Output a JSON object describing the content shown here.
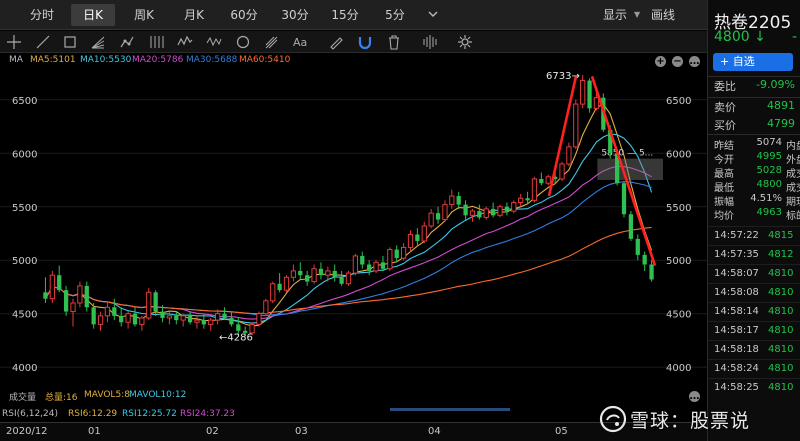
{
  "periods": [
    "分时",
    "日K",
    "周K",
    "月K",
    "60分",
    "30分",
    "15分",
    "5分"
  ],
  "active_period": 1,
  "header": {
    "display_label": "显示",
    "draw_label": "画线"
  },
  "tools": [
    "crosshair-icon",
    "line-icon",
    "rect-icon",
    "fib-fan-icon",
    "pattern-icon",
    "channel-icon",
    "wave-icon",
    "circle-icon",
    "pitchfork-icon",
    "text-icon",
    "pen-icon",
    "magnet-icon",
    "trash-icon",
    "align-icon",
    "settings-icon"
  ],
  "ma_legend": {
    "title": "MA",
    "items": [
      {
        "label": "MA5:5101",
        "color": "#e0b040"
      },
      {
        "label": "MA10:5530",
        "color": "#3ec8e8"
      },
      {
        "label": "MA20:5786",
        "color": "#d24ad2"
      },
      {
        "label": "MA30:5688",
        "color": "#2f7fe0"
      },
      {
        "label": "MA60:5410",
        "color": "#ff6a2a"
      }
    ],
    "plus_symbol": "+",
    "minus_symbol": "−"
  },
  "chart_data": {
    "type": "candlestick",
    "y_ticks": [
      6500,
      6000,
      5500,
      5000,
      4500,
      4000
    ],
    "ylim": [
      3880,
      6760
    ],
    "x_labels": [
      "2020/12",
      "01",
      "02",
      "03",
      "04",
      "05"
    ],
    "high_marker": "6733→",
    "low_marker": "←4286",
    "price_box_label": "5850 — 5...",
    "bullish_color": "#e03c3c",
    "bearish_color": "#2ec050",
    "ohlc": [
      [
        4700,
        4840,
        4600,
        4640
      ],
      [
        4640,
        4900,
        4600,
        4860
      ],
      [
        4860,
        4950,
        4700,
        4720
      ],
      [
        4720,
        4760,
        4480,
        4520
      ],
      [
        4520,
        4640,
        4380,
        4600
      ],
      [
        4600,
        4800,
        4560,
        4760
      ],
      [
        4760,
        4800,
        4520,
        4560
      ],
      [
        4560,
        4600,
        4360,
        4400
      ],
      [
        4400,
        4520,
        4340,
        4480
      ],
      [
        4480,
        4600,
        4420,
        4560
      ],
      [
        4560,
        4640,
        4440,
        4480
      ],
      [
        4480,
        4560,
        4380,
        4420
      ],
      [
        4420,
        4520,
        4360,
        4500
      ],
      [
        4500,
        4560,
        4380,
        4400
      ],
      [
        4400,
        4480,
        4340,
        4460
      ],
      [
        4460,
        4740,
        4440,
        4700
      ],
      [
        4700,
        4720,
        4480,
        4520
      ],
      [
        4520,
        4580,
        4420,
        4460
      ],
      [
        4460,
        4520,
        4400,
        4480
      ],
      [
        4480,
        4520,
        4400,
        4440
      ],
      [
        4440,
        4500,
        4380,
        4480
      ],
      [
        4480,
        4520,
        4400,
        4420
      ],
      [
        4420,
        4480,
        4360,
        4440
      ],
      [
        4440,
        4500,
        4360,
        4400
      ],
      [
        4400,
        4460,
        4340,
        4440
      ],
      [
        4440,
        4540,
        4400,
        4500
      ],
      [
        4500,
        4560,
        4440,
        4460
      ],
      [
        4460,
        4520,
        4380,
        4400
      ],
      [
        4400,
        4460,
        4300,
        4340
      ],
      [
        4340,
        4380,
        4286,
        4320
      ],
      [
        4320,
        4420,
        4300,
        4400
      ],
      [
        4400,
        4520,
        4380,
        4500
      ],
      [
        4500,
        4640,
        4480,
        4620
      ],
      [
        4620,
        4800,
        4600,
        4780
      ],
      [
        4780,
        4880,
        4700,
        4720
      ],
      [
        4720,
        4860,
        4700,
        4840
      ],
      [
        4840,
        4960,
        4800,
        4900
      ],
      [
        4900,
        4980,
        4820,
        4860
      ],
      [
        4860,
        4900,
        4760,
        4800
      ],
      [
        4800,
        4960,
        4780,
        4920
      ],
      [
        4920,
        4980,
        4820,
        4860
      ],
      [
        4860,
        4940,
        4800,
        4900
      ],
      [
        4900,
        4960,
        4800,
        4840
      ],
      [
        4840,
        4900,
        4760,
        4780
      ],
      [
        4780,
        4900,
        4760,
        4880
      ],
      [
        4880,
        5060,
        4860,
        5040
      ],
      [
        5040,
        5080,
        4920,
        4960
      ],
      [
        4960,
        5000,
        4860,
        4900
      ],
      [
        4900,
        5000,
        4880,
        4980
      ],
      [
        4980,
        5040,
        4900,
        4920
      ],
      [
        4920,
        5120,
        4900,
        5100
      ],
      [
        5100,
        5140,
        4980,
        5020
      ],
      [
        5020,
        5160,
        5000,
        5120
      ],
      [
        5120,
        5280,
        5080,
        5240
      ],
      [
        5240,
        5300,
        5140,
        5180
      ],
      [
        5180,
        5360,
        5160,
        5320
      ],
      [
        5320,
        5480,
        5300,
        5440
      ],
      [
        5440,
        5500,
        5340,
        5380
      ],
      [
        5380,
        5560,
        5360,
        5520
      ],
      [
        5520,
        5660,
        5480,
        5600
      ],
      [
        5600,
        5640,
        5480,
        5520
      ],
      [
        5520,
        5560,
        5380,
        5420
      ],
      [
        5420,
        5480,
        5360,
        5460
      ],
      [
        5460,
        5520,
        5380,
        5400
      ],
      [
        5400,
        5500,
        5380,
        5480
      ],
      [
        5480,
        5540,
        5400,
        5420
      ],
      [
        5420,
        5520,
        5400,
        5500
      ],
      [
        5500,
        5540,
        5420,
        5460
      ],
      [
        5460,
        5560,
        5440,
        5540
      ],
      [
        5540,
        5620,
        5500,
        5580
      ],
      [
        5580,
        5640,
        5520,
        5560
      ],
      [
        5560,
        5780,
        5540,
        5760
      ],
      [
        5760,
        5820,
        5700,
        5720
      ],
      [
        5720,
        5800,
        5700,
        5780
      ],
      [
        5780,
        5820,
        5720,
        5760
      ],
      [
        5760,
        5920,
        5740,
        5900
      ],
      [
        5900,
        6100,
        5880,
        6060
      ],
      [
        6060,
        6500,
        6040,
        6460
      ],
      [
        6460,
        6733,
        6420,
        6680
      ],
      [
        6680,
        6700,
        6380,
        6420
      ],
      [
        6420,
        6560,
        6400,
        6520
      ],
      [
        6520,
        6560,
        6200,
        6220
      ],
      [
        6220,
        6260,
        5950,
        6000
      ],
      [
        6000,
        6020,
        5700,
        5720
      ],
      [
        5720,
        5740,
        5400,
        5430
      ],
      [
        5430,
        5460,
        5180,
        5200
      ],
      [
        5200,
        5240,
        5000,
        5050
      ],
      [
        5050,
        5080,
        4900,
        4960
      ],
      [
        4960,
        5000,
        4800,
        4820
      ]
    ]
  },
  "vol_legend": {
    "label": "成交量",
    "total": "总量:16",
    "mavol5": "MAVOL5:8",
    "mavol10": "MAVOL10:12"
  },
  "rsi_legend": {
    "label": "RSI(6,12,24)",
    "rsi6": "RSI6:12.29",
    "rsi12": "RSI12:25.72",
    "rsi24": "RSI24:37.23"
  },
  "quote": {
    "symbol": "热卷2205",
    "price": "4800",
    "arrow": "↓",
    "change_cut": "-",
    "add_label": "+ 自选",
    "webi_label": "委比",
    "webi_value": "-9.09%",
    "sell_label": "卖价",
    "sell_value": "4891",
    "buy_label": "买价",
    "buy_value": "4799",
    "stats": [
      {
        "k": "昨结",
        "v": "5074",
        "k2": "内盘",
        "color": "#c8c8c8"
      },
      {
        "k": "今开",
        "v": "4995",
        "k2": "外盘",
        "color": "#22c04a"
      },
      {
        "k": "最高",
        "v": "5028",
        "k2": "成交",
        "color": "#22c04a"
      },
      {
        "k": "最低",
        "v": "4800",
        "k2": "成交",
        "color": "#22c04a"
      },
      {
        "k": "振幅",
        "v": "4.51%",
        "k2": "期现",
        "color": "#c8c8c8"
      },
      {
        "k": "均价",
        "v": "4963",
        "k2": "标的",
        "color": "#22c04a"
      }
    ],
    "ticks": [
      {
        "t": "14:57:22",
        "p": "4815"
      },
      {
        "t": "14:57:35",
        "p": "4812"
      },
      {
        "t": "14:58:07",
        "p": "4810"
      },
      {
        "t": "14:58:08",
        "p": "4810"
      },
      {
        "t": "14:58:14",
        "p": "4810"
      },
      {
        "t": "14:58:17",
        "p": "4810"
      },
      {
        "t": "14:58:18",
        "p": "4810"
      },
      {
        "t": "14:58:24",
        "p": "4810"
      },
      {
        "t": "14:58:25",
        "p": "4810"
      }
    ]
  },
  "watermark": {
    "text": "雪球：股票说"
  }
}
